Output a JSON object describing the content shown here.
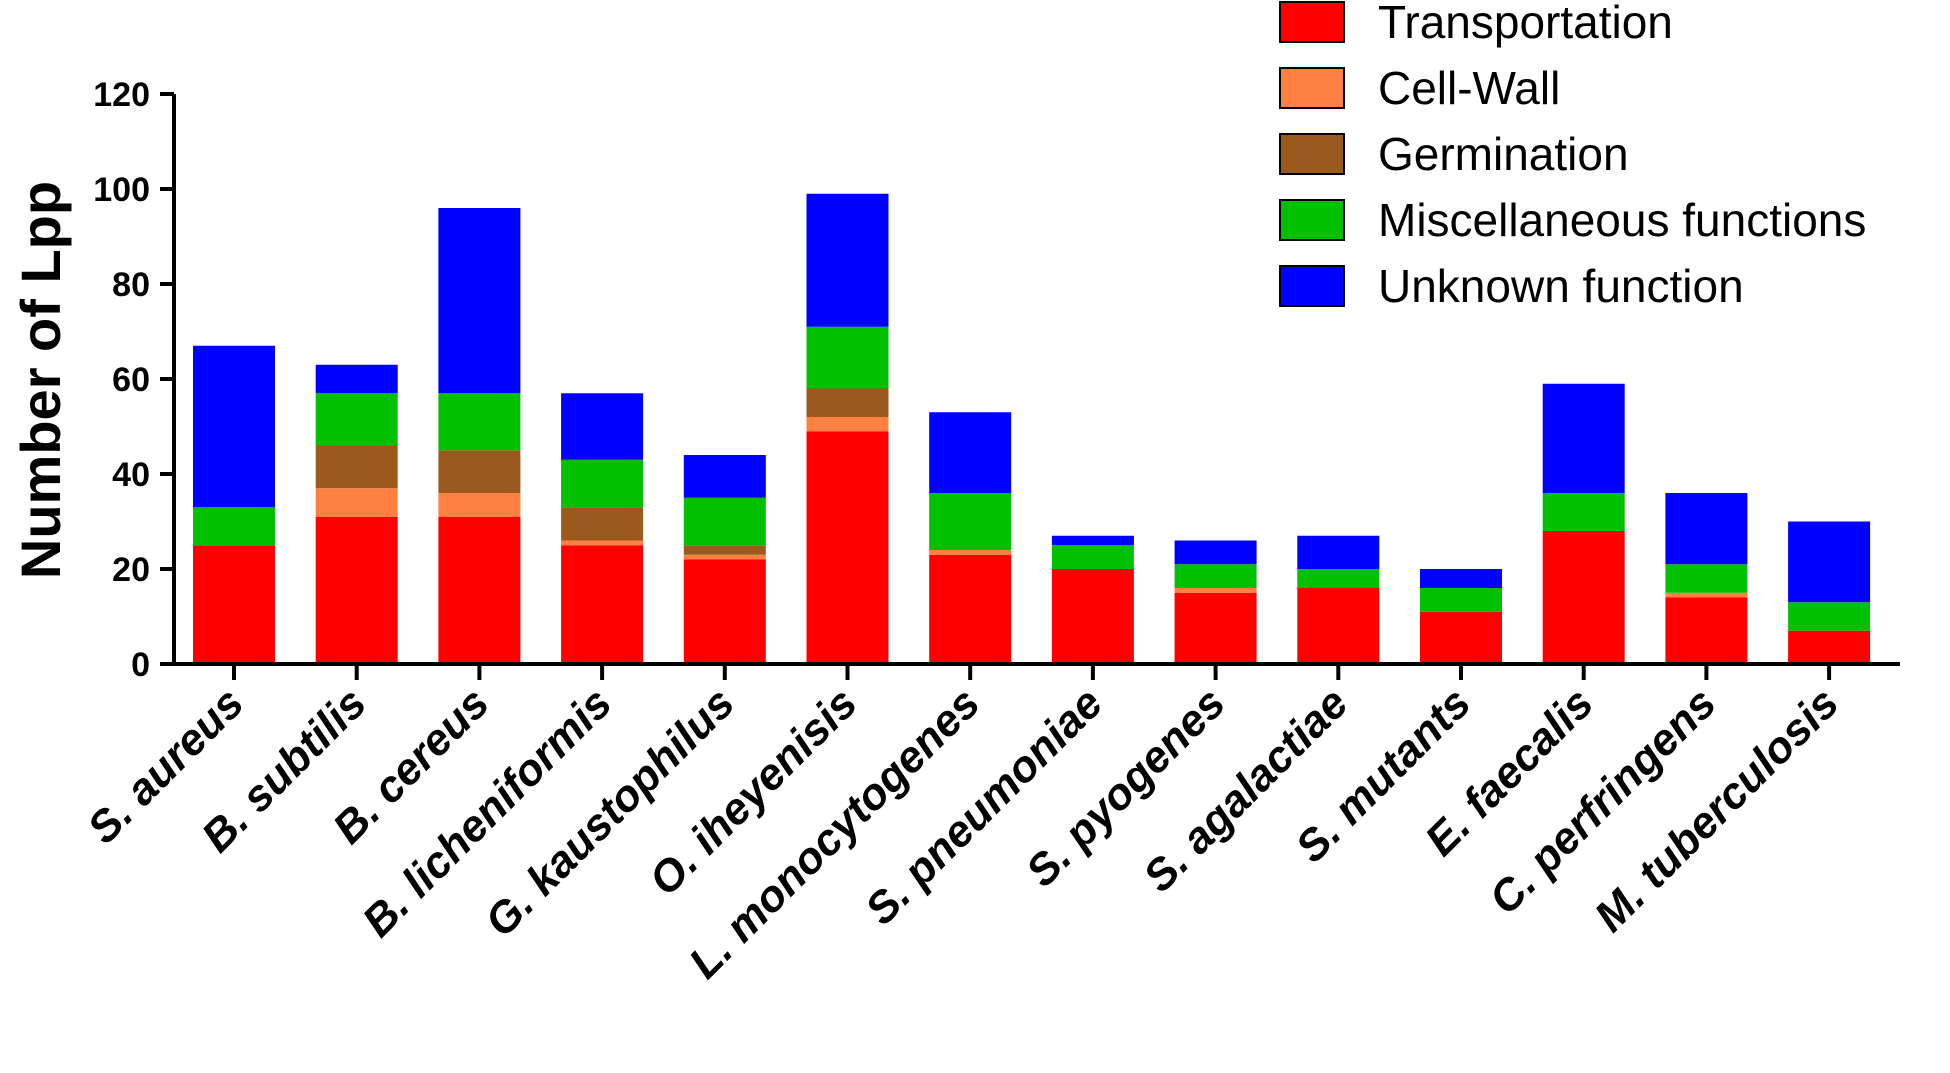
{
  "chart_data": {
    "type": "bar",
    "stacked": true,
    "title": "",
    "xlabel": "",
    "ylabel": "Number of Lpp",
    "ylim": [
      0,
      120
    ],
    "yticks": [
      0,
      20,
      40,
      60,
      80,
      100,
      120
    ],
    "grid": false,
    "legend_position": "top-right",
    "categories": [
      "S. aureus",
      "B. subtilis",
      "B. cereus",
      "B. licheniformis",
      "G. kaustophilus",
      "O. iheyenisis",
      "L. monocytogenes",
      "S. pneumoniae",
      "S. pyogenes",
      "S. agalactiae",
      "S. mutants",
      "E. faecalis",
      "C. perfringens",
      "M. tuberculosis"
    ],
    "series": [
      {
        "name": "Transportation",
        "color": "#ff0000",
        "values": [
          25,
          31,
          31,
          25,
          22,
          49,
          23,
          20,
          15,
          16,
          11,
          28,
          14,
          7
        ]
      },
      {
        "name": "Cell-Wall",
        "color": "#ff8040",
        "values": [
          0,
          6,
          5,
          1,
          1,
          3,
          1,
          0,
          1,
          0,
          0,
          0,
          1,
          0
        ]
      },
      {
        "name": "Germination",
        "color": "#9a5a1e",
        "values": [
          0,
          9,
          9,
          7,
          2,
          6,
          0,
          0,
          0,
          0,
          0,
          0,
          0,
          0
        ]
      },
      {
        "name": "Miscellaneous functions",
        "color": "#00c000",
        "values": [
          8,
          11,
          12,
          10,
          10,
          13,
          12,
          5,
          5,
          4,
          5,
          8,
          6,
          6
        ]
      },
      {
        "name": "Unknown function",
        "color": "#0000ff",
        "values": [
          34,
          6,
          39,
          14,
          9,
          28,
          17,
          2,
          5,
          7,
          4,
          23,
          15,
          17
        ]
      }
    ]
  }
}
